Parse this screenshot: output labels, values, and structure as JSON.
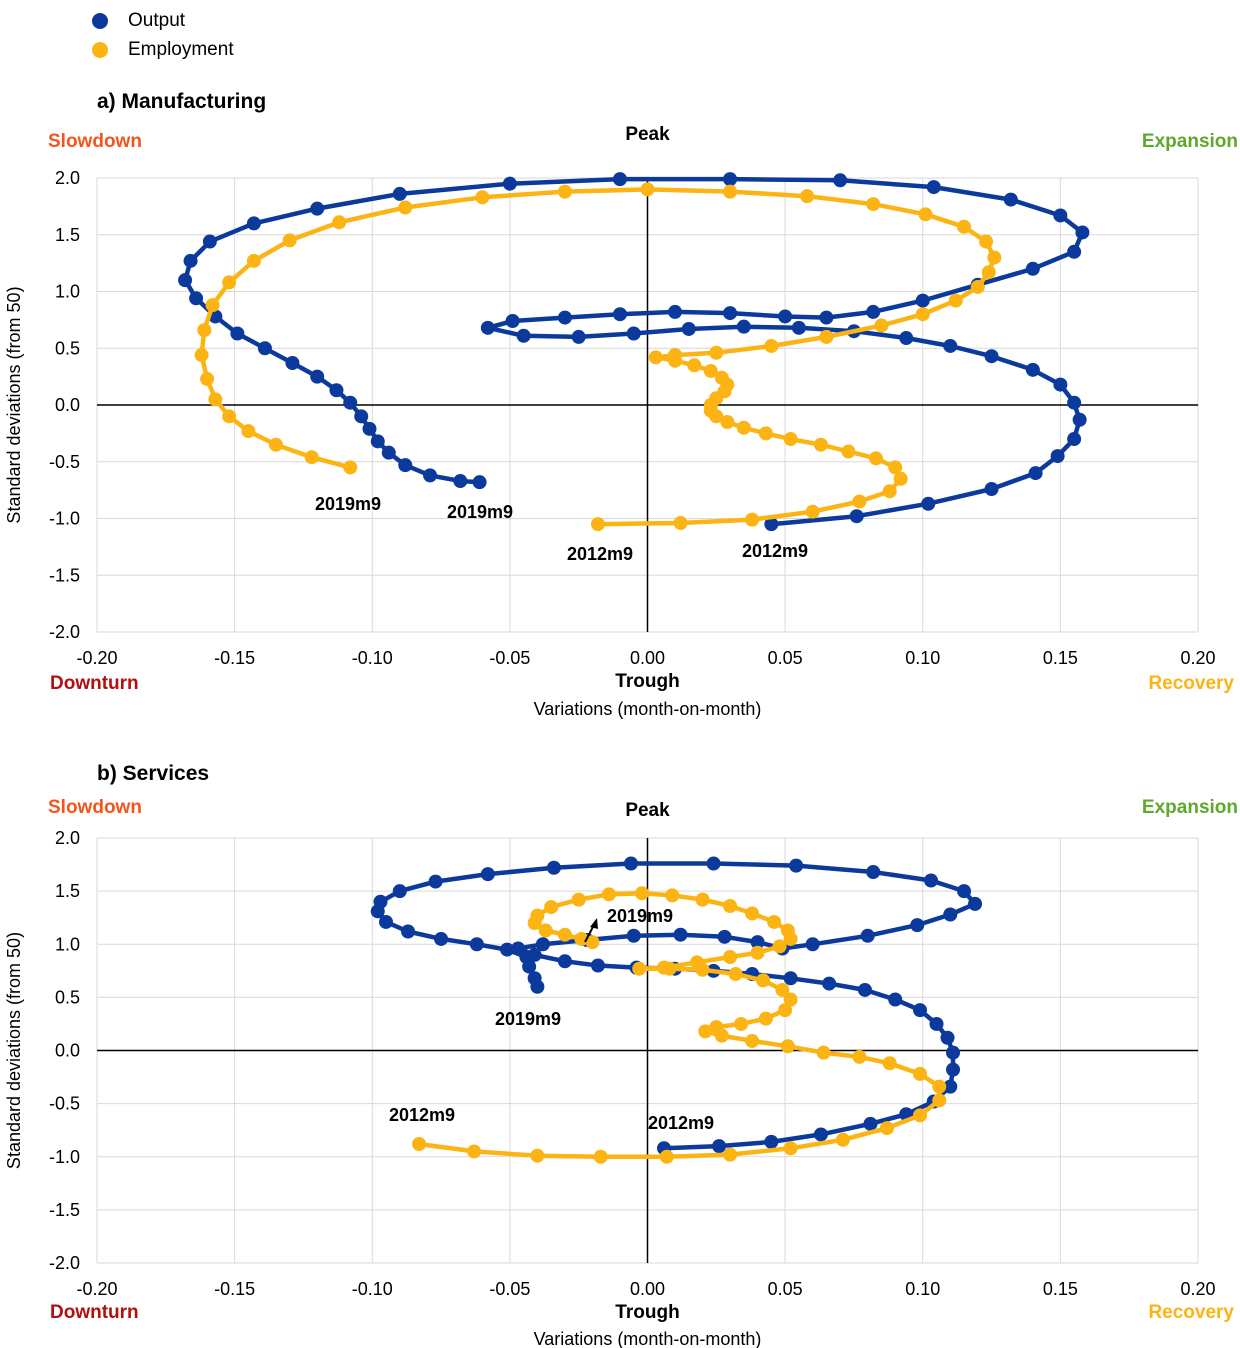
{
  "legend": {
    "items": [
      {
        "label": "Output",
        "color": "#0b3a9c"
      },
      {
        "label": "Employment",
        "color": "#fbb414"
      }
    ]
  },
  "phase_colors": {
    "slowdown": "#f2561d",
    "expansion": "#5fa82a",
    "downturn": "#b20f0f",
    "recovery": "#fbb414",
    "peak": "#000000",
    "trough": "#000000"
  },
  "chart_data": [
    {
      "type": "scatter",
      "title": "a) Manufacturing",
      "xlabel": "Variations (month-on-month)",
      "ylabel": "Standard deviations (from 50)",
      "xlim": [
        -0.2,
        0.2
      ],
      "ylim": [
        -2.0,
        2.0
      ],
      "x_ticks": [
        "-0.20",
        "-0.15",
        "-0.10",
        "-0.05",
        "0.00",
        "0.05",
        "0.10",
        "0.15",
        "0.20"
      ],
      "y_ticks": [
        "2.0",
        "1.5",
        "1.0",
        "0.5",
        "0.0",
        "-0.5",
        "-1.0",
        "-1.5",
        "-2.0"
      ],
      "phases": {
        "top_left": "Slowdown",
        "top_center": "Peak",
        "top_right": "Expansion",
        "bottom_left": "Downturn",
        "bottom_center": "Trough",
        "bottom_right": "Recovery"
      },
      "grid": true,
      "annotations": [
        {
          "text": "2019m9",
          "series": "Employment",
          "x": -0.107,
          "y": -0.86
        },
        {
          "text": "2019m9",
          "series": "Output",
          "x": -0.061,
          "y": -0.93
        },
        {
          "text": "2012m9",
          "series": "Employment",
          "x": -0.018,
          "y": -1.31
        },
        {
          "text": "2012m9",
          "series": "Output",
          "x": 0.045,
          "y": -1.28
        }
      ],
      "series": [
        {
          "name": "Output",
          "color": "#0b3a9c",
          "points": [
            [
              0.045,
              -1.05
            ],
            [
              0.076,
              -0.98
            ],
            [
              0.102,
              -0.87
            ],
            [
              0.125,
              -0.74
            ],
            [
              0.141,
              -0.6
            ],
            [
              0.149,
              -0.45
            ],
            [
              0.155,
              -0.3
            ],
            [
              0.157,
              -0.13
            ],
            [
              0.155,
              0.02
            ],
            [
              0.15,
              0.18
            ],
            [
              0.14,
              0.31
            ],
            [
              0.125,
              0.43
            ],
            [
              0.11,
              0.52
            ],
            [
              0.094,
              0.59
            ],
            [
              0.075,
              0.65
            ],
            [
              0.055,
              0.68
            ],
            [
              0.035,
              0.69
            ],
            [
              0.015,
              0.67
            ],
            [
              -0.005,
              0.63
            ],
            [
              -0.025,
              0.6
            ],
            [
              -0.045,
              0.61
            ],
            [
              -0.058,
              0.68
            ],
            [
              -0.049,
              0.74
            ],
            [
              -0.03,
              0.77
            ],
            [
              -0.01,
              0.8
            ],
            [
              0.01,
              0.82
            ],
            [
              0.03,
              0.81
            ],
            [
              0.05,
              0.78
            ],
            [
              0.065,
              0.77
            ],
            [
              0.082,
              0.82
            ],
            [
              0.1,
              0.92
            ],
            [
              0.12,
              1.06
            ],
            [
              0.14,
              1.2
            ],
            [
              0.155,
              1.35
            ],
            [
              0.158,
              1.52
            ],
            [
              0.15,
              1.67
            ],
            [
              0.132,
              1.81
            ],
            [
              0.104,
              1.92
            ],
            [
              0.07,
              1.98
            ],
            [
              0.03,
              1.99
            ],
            [
              -0.01,
              1.99
            ],
            [
              -0.05,
              1.95
            ],
            [
              -0.09,
              1.86
            ],
            [
              -0.12,
              1.73
            ],
            [
              -0.143,
              1.6
            ],
            [
              -0.159,
              1.44
            ],
            [
              -0.166,
              1.27
            ],
            [
              -0.168,
              1.1
            ],
            [
              -0.164,
              0.94
            ],
            [
              -0.157,
              0.78
            ],
            [
              -0.149,
              0.63
            ],
            [
              -0.139,
              0.5
            ],
            [
              -0.129,
              0.37
            ],
            [
              -0.12,
              0.25
            ],
            [
              -0.113,
              0.13
            ],
            [
              -0.108,
              0.02
            ],
            [
              -0.104,
              -0.1
            ],
            [
              -0.101,
              -0.21
            ],
            [
              -0.098,
              -0.32
            ],
            [
              -0.094,
              -0.42
            ],
            [
              -0.088,
              -0.53
            ],
            [
              -0.079,
              -0.62
            ],
            [
              -0.068,
              -0.67
            ],
            [
              -0.061,
              -0.68
            ]
          ]
        },
        {
          "name": "Employment",
          "color": "#fbb414",
          "points": [
            [
              -0.018,
              -1.05
            ],
            [
              0.012,
              -1.04
            ],
            [
              0.038,
              -1.01
            ],
            [
              0.06,
              -0.94
            ],
            [
              0.077,
              -0.85
            ],
            [
              0.088,
              -0.76
            ],
            [
              0.092,
              -0.65
            ],
            [
              0.09,
              -0.55
            ],
            [
              0.083,
              -0.47
            ],
            [
              0.073,
              -0.41
            ],
            [
              0.063,
              -0.35
            ],
            [
              0.052,
              -0.3
            ],
            [
              0.043,
              -0.25
            ],
            [
              0.035,
              -0.2
            ],
            [
              0.029,
              -0.15
            ],
            [
              0.025,
              -0.1
            ],
            [
              0.023,
              -0.05
            ],
            [
              0.023,
              0.0
            ],
            [
              0.025,
              0.06
            ],
            [
              0.028,
              0.12
            ],
            [
              0.029,
              0.18
            ],
            [
              0.027,
              0.24
            ],
            [
              0.023,
              0.3
            ],
            [
              0.017,
              0.35
            ],
            [
              0.01,
              0.39
            ],
            [
              0.003,
              0.42
            ],
            [
              0.01,
              0.44
            ],
            [
              0.025,
              0.46
            ],
            [
              0.045,
              0.52
            ],
            [
              0.065,
              0.6
            ],
            [
              0.085,
              0.7
            ],
            [
              0.1,
              0.8
            ],
            [
              0.112,
              0.92
            ],
            [
              0.12,
              1.04
            ],
            [
              0.124,
              1.17
            ],
            [
              0.126,
              1.3
            ],
            [
              0.123,
              1.44
            ],
            [
              0.115,
              1.57
            ],
            [
              0.101,
              1.68
            ],
            [
              0.082,
              1.77
            ],
            [
              0.058,
              1.84
            ],
            [
              0.03,
              1.88
            ],
            [
              0.0,
              1.9
            ],
            [
              -0.03,
              1.88
            ],
            [
              -0.06,
              1.83
            ],
            [
              -0.088,
              1.74
            ],
            [
              -0.112,
              1.61
            ],
            [
              -0.13,
              1.45
            ],
            [
              -0.143,
              1.27
            ],
            [
              -0.152,
              1.08
            ],
            [
              -0.158,
              0.88
            ],
            [
              -0.161,
              0.66
            ],
            [
              -0.162,
              0.44
            ],
            [
              -0.16,
              0.23
            ],
            [
              -0.157,
              0.05
            ],
            [
              -0.152,
              -0.1
            ],
            [
              -0.145,
              -0.23
            ],
            [
              -0.135,
              -0.35
            ],
            [
              -0.122,
              -0.46
            ],
            [
              -0.108,
              -0.55
            ]
          ]
        }
      ]
    },
    {
      "type": "scatter",
      "title": "b) Services",
      "xlabel": "Variations (month-on-month)",
      "ylabel": "Standard deviations (from 50)",
      "xlim": [
        -0.2,
        0.2
      ],
      "ylim": [
        -2.0,
        2.0
      ],
      "x_ticks": [
        "-0.20",
        "-0.15",
        "-0.10",
        "-0.05",
        "0.00",
        "0.05",
        "0.10",
        "0.15",
        "0.20"
      ],
      "y_ticks": [
        "2.0",
        "1.5",
        "1.0",
        "0.5",
        "0.0",
        "-0.5",
        "-1.0",
        "-1.5",
        "-2.0"
      ],
      "phases": {
        "top_left": "Slowdown",
        "top_center": "Peak",
        "top_right": "Expansion",
        "bottom_left": "Downturn",
        "bottom_center": "Trough",
        "bottom_right": "Recovery"
      },
      "grid": true,
      "annotations": [
        {
          "text": "2019m9",
          "series": "Employment",
          "x": -0.004,
          "y": 1.2,
          "arrow": true
        },
        {
          "text": "2019m9",
          "series": "Output",
          "x": -0.043,
          "y": 0.28
        },
        {
          "text": "2012m9",
          "series": "Employment",
          "x": -0.083,
          "y": -0.58
        },
        {
          "text": "2012m9",
          "series": "Output",
          "x": 0.012,
          "y": -0.63
        }
      ],
      "series": [
        {
          "name": "Output",
          "color": "#0b3a9c",
          "points": [
            [
              0.006,
              -0.92
            ],
            [
              0.026,
              -0.9
            ],
            [
              0.045,
              -0.86
            ],
            [
              0.063,
              -0.79
            ],
            [
              0.081,
              -0.69
            ],
            [
              0.094,
              -0.6
            ],
            [
              0.104,
              -0.48
            ],
            [
              0.11,
              -0.34
            ],
            [
              0.111,
              -0.18
            ],
            [
              0.111,
              -0.02
            ],
            [
              0.109,
              0.12
            ],
            [
              0.105,
              0.25
            ],
            [
              0.099,
              0.38
            ],
            [
              0.09,
              0.48
            ],
            [
              0.079,
              0.57
            ],
            [
              0.066,
              0.63
            ],
            [
              0.052,
              0.68
            ],
            [
              0.038,
              0.72
            ],
            [
              0.024,
              0.75
            ],
            [
              0.01,
              0.77
            ],
            [
              -0.004,
              0.78
            ],
            [
              -0.018,
              0.8
            ],
            [
              -0.03,
              0.84
            ],
            [
              -0.041,
              0.9
            ],
            [
              -0.047,
              0.96
            ],
            [
              -0.038,
              1.0
            ],
            [
              -0.022,
              1.04
            ],
            [
              -0.005,
              1.08
            ],
            [
              0.012,
              1.09
            ],
            [
              0.028,
              1.07
            ],
            [
              0.04,
              1.02
            ],
            [
              0.049,
              0.96
            ],
            [
              0.06,
              1.0
            ],
            [
              0.08,
              1.08
            ],
            [
              0.098,
              1.18
            ],
            [
              0.11,
              1.28
            ],
            [
              0.119,
              1.38
            ],
            [
              0.115,
              1.5
            ],
            [
              0.103,
              1.6
            ],
            [
              0.082,
              1.68
            ],
            [
              0.054,
              1.74
            ],
            [
              0.024,
              1.76
            ],
            [
              -0.006,
              1.76
            ],
            [
              -0.034,
              1.72
            ],
            [
              -0.058,
              1.66
            ],
            [
              -0.077,
              1.59
            ],
            [
              -0.09,
              1.5
            ],
            [
              -0.097,
              1.4
            ],
            [
              -0.098,
              1.31
            ],
            [
              -0.095,
              1.21
            ],
            [
              -0.087,
              1.12
            ],
            [
              -0.075,
              1.05
            ],
            [
              -0.062,
              1.0
            ],
            [
              -0.051,
              0.95
            ],
            [
              -0.044,
              0.88
            ],
            [
              -0.043,
              0.79
            ],
            [
              -0.041,
              0.68
            ],
            [
              -0.04,
              0.6
            ]
          ]
        },
        {
          "name": "Employment",
          "color": "#fbb414",
          "points": [
            [
              -0.083,
              -0.88
            ],
            [
              -0.063,
              -0.95
            ],
            [
              -0.04,
              -0.99
            ],
            [
              -0.017,
              -1.0
            ],
            [
              0.007,
              -1.0
            ],
            [
              0.03,
              -0.98
            ],
            [
              0.052,
              -0.92
            ],
            [
              0.071,
              -0.84
            ],
            [
              0.087,
              -0.73
            ],
            [
              0.099,
              -0.61
            ],
            [
              0.106,
              -0.47
            ],
            [
              0.106,
              -0.34
            ],
            [
              0.099,
              -0.22
            ],
            [
              0.088,
              -0.12
            ],
            [
              0.077,
              -0.06
            ],
            [
              0.064,
              -0.02
            ],
            [
              0.051,
              0.04
            ],
            [
              0.038,
              0.09
            ],
            [
              0.027,
              0.14
            ],
            [
              0.021,
              0.18
            ],
            [
              0.025,
              0.22
            ],
            [
              0.034,
              0.25
            ],
            [
              0.043,
              0.3
            ],
            [
              0.05,
              0.38
            ],
            [
              0.052,
              0.48
            ],
            [
              0.049,
              0.57
            ],
            [
              0.042,
              0.66
            ],
            [
              0.032,
              0.72
            ],
            [
              0.02,
              0.76
            ],
            [
              0.008,
              0.77
            ],
            [
              -0.003,
              0.77
            ],
            [
              0.006,
              0.78
            ],
            [
              0.018,
              0.83
            ],
            [
              0.03,
              0.88
            ],
            [
              0.04,
              0.92
            ],
            [
              0.048,
              0.98
            ],
            [
              0.052,
              1.05
            ],
            [
              0.051,
              1.13
            ],
            [
              0.046,
              1.21
            ],
            [
              0.038,
              1.29
            ],
            [
              0.03,
              1.36
            ],
            [
              0.02,
              1.42
            ],
            [
              0.009,
              1.46
            ],
            [
              -0.002,
              1.48
            ],
            [
              -0.014,
              1.47
            ],
            [
              -0.025,
              1.42
            ],
            [
              -0.035,
              1.35
            ],
            [
              -0.04,
              1.27
            ],
            [
              -0.041,
              1.2
            ],
            [
              -0.037,
              1.13
            ],
            [
              -0.03,
              1.09
            ],
            [
              -0.024,
              1.05
            ],
            [
              -0.02,
              1.02
            ]
          ]
        }
      ]
    }
  ]
}
